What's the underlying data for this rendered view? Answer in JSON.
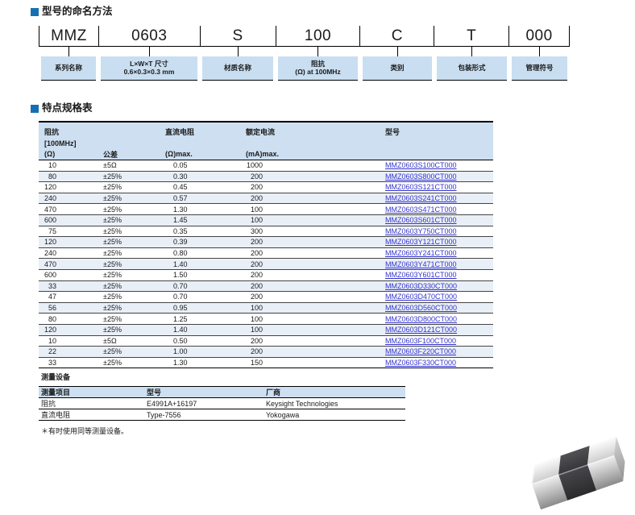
{
  "page_title_1": "型号的命名方法",
  "page_title_2": "特点规格表",
  "part_numbering": {
    "codes": [
      "MMZ",
      "0603",
      "S",
      "100",
      "C",
      "T",
      "000"
    ],
    "labels": [
      {
        "line1": "系列名称",
        "line2": ""
      },
      {
        "line1": "L×W×T 尺寸",
        "line2": "0.6×0.3×0.3 mm"
      },
      {
        "line1": "材质名称",
        "line2": ""
      },
      {
        "line1": "阻抗",
        "line2": "(Ω) at 100MHz"
      },
      {
        "line1": "类别",
        "line2": ""
      },
      {
        "line1": "包装形式",
        "line2": ""
      },
      {
        "line1": "管理符号",
        "line2": ""
      }
    ]
  },
  "spec_table": {
    "header": {
      "impedance_l1": "阻抗",
      "impedance_l2": "[100MHz]",
      "impedance_l3": "(Ω)",
      "tolerance": "公差",
      "dcr_l1": "直流电阻",
      "dcr_l3": "(Ω)max.",
      "current_l1": "额定电流",
      "current_l3": "(mA)max.",
      "part_no": "型号"
    },
    "rows": [
      [
        "10",
        "±5Ω",
        "0.05",
        "1000",
        "MMZ0603S100CT000"
      ],
      [
        "80",
        "±25%",
        "0.30",
        "200",
        "MMZ0603S800CT000"
      ],
      [
        "120",
        "±25%",
        "0.45",
        "200",
        "MMZ0603S121CT000"
      ],
      [
        "240",
        "±25%",
        "0.57",
        "200",
        "MMZ0603S241CT000"
      ],
      [
        "470",
        "±25%",
        "1.30",
        "100",
        "MMZ0603S471CT000"
      ],
      [
        "600",
        "±25%",
        "1.45",
        "100",
        "MMZ0603S601CT000"
      ],
      [
        "75",
        "±25%",
        "0.35",
        "300",
        "MMZ0603Y750CT000"
      ],
      [
        "120",
        "±25%",
        "0.39",
        "200",
        "MMZ0603Y121CT000"
      ],
      [
        "240",
        "±25%",
        "0.80",
        "200",
        "MMZ0603Y241CT000"
      ],
      [
        "470",
        "±25%",
        "1.40",
        "200",
        "MMZ0603Y471CT000"
      ],
      [
        "600",
        "±25%",
        "1.50",
        "200",
        "MMZ0603Y601CT000"
      ],
      [
        "33",
        "±25%",
        "0.70",
        "200",
        "MMZ0603D330CT000"
      ],
      [
        "47",
        "±25%",
        "0.70",
        "200",
        "MMZ0603D470CT000"
      ],
      [
        "56",
        "±25%",
        "0.95",
        "100",
        "MMZ0603D560CT000"
      ],
      [
        "80",
        "±25%",
        "1.25",
        "100",
        "MMZ0603D800CT000"
      ],
      [
        "120",
        "±25%",
        "1.40",
        "100",
        "MMZ0603D121CT000"
      ],
      [
        "10",
        "±5Ω",
        "0.50",
        "200",
        "MMZ0603F100CT000"
      ],
      [
        "22",
        "±25%",
        "1.00",
        "200",
        "MMZ0603F220CT000"
      ],
      [
        "33",
        "±25%",
        "1.30",
        "150",
        "MMZ0603F330CT000"
      ]
    ]
  },
  "equipment": {
    "title": "测量设备",
    "header": [
      "测量项目",
      "型号",
      "厂商"
    ],
    "rows": [
      [
        "阻抗",
        "E4991A+16197",
        "Keysight Technologies"
      ],
      [
        "直流电阻",
        "Type-7556",
        "Yokogawa"
      ]
    ]
  },
  "note": "＊有时使用同等测量设备。",
  "product_image": {
    "name": "chip-ferrite-bead-photo"
  },
  "colors": {
    "accent": "#146fb4",
    "head-bg": "#cddff1",
    "alt-row-bg": "#e9eff7",
    "label-box-bg": "#c9def1",
    "link-blue": "#3333cc",
    "chip-body": "#353537",
    "chip-termination": "#c6c6c6"
  }
}
